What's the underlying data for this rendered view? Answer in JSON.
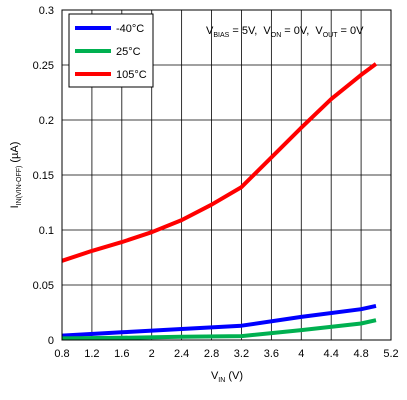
{
  "chart_data": {
    "type": "line",
    "title": "",
    "condition": {
      "vbias": {
        "main": "V",
        "sub": "BIAS",
        "value": " = 5V,"
      },
      "von": {
        "main": "V",
        "sub": "ON",
        "value": " = 0V,"
      },
      "vout": {
        "main": "V",
        "sub": "OUT",
        "value": " = 0V"
      }
    },
    "xlabel": {
      "main": "V",
      "sub": "IN",
      "unit": " (V)"
    },
    "ylabel": {
      "main": "I",
      "sub": "IN(VIN-OFF)",
      "unit": " (µA)"
    },
    "xlim": [
      0.8,
      5.2
    ],
    "ylim": [
      0,
      0.3
    ],
    "x_ticks": [
      0.8,
      1.2,
      1.6,
      2,
      2.4,
      2.8,
      3.2,
      3.6,
      4,
      4.4,
      4.8,
      5.2
    ],
    "x_tick_labels": [
      "0.8",
      "1.2",
      "1.6",
      "2",
      "2.4",
      "2.8",
      "3.2",
      "3.6",
      "4",
      "4.4",
      "4.8",
      "5.2"
    ],
    "y_ticks": [
      0,
      0.05,
      0.1,
      0.15,
      0.2,
      0.25,
      0.3
    ],
    "y_tick_labels": [
      "0",
      "0.05",
      "0.1",
      "0.15",
      "0.2",
      "0.25",
      "0.3"
    ],
    "grid": true,
    "legend_position": "top-left",
    "series": [
      {
        "name": "-40°C",
        "color": "#0000ff",
        "x": [
          0.8,
          1.6,
          2.4,
          3.2,
          4.0,
          4.8,
          5.0
        ],
        "y": [
          0.004,
          0.007,
          0.01,
          0.013,
          0.021,
          0.028,
          0.031
        ]
      },
      {
        "name": "25°C",
        "color": "#00b050",
        "x": [
          0.8,
          1.6,
          2.4,
          3.2,
          4.0,
          4.8,
          5.0
        ],
        "y": [
          0.0015,
          0.002,
          0.003,
          0.0035,
          0.009,
          0.015,
          0.018
        ]
      },
      {
        "name": "105°C",
        "color": "#ff0000",
        "x": [
          0.8,
          1.2,
          1.6,
          2.0,
          2.4,
          2.8,
          3.2,
          3.6,
          4.0,
          4.4,
          4.8,
          5.0
        ],
        "y": [
          0.072,
          0.081,
          0.089,
          0.098,
          0.109,
          0.123,
          0.139,
          0.166,
          0.193,
          0.219,
          0.241,
          0.251
        ]
      }
    ]
  }
}
